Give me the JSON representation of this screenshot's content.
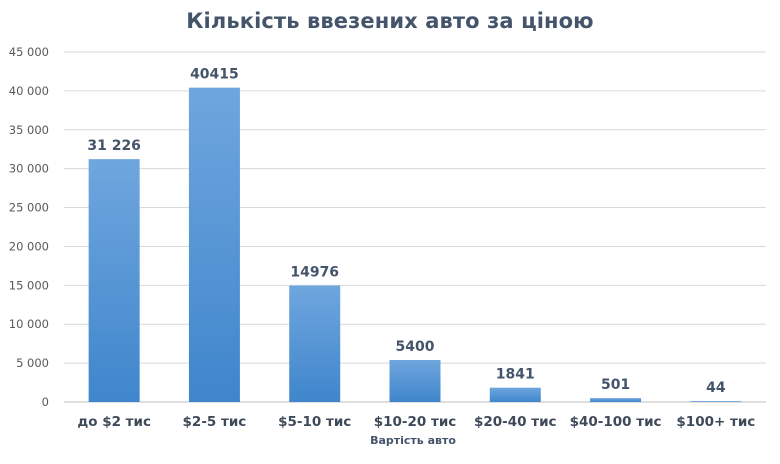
{
  "chart_data": {
    "type": "bar",
    "title": "Кількість ввезених авто за ціною",
    "xlabel": "Вартість авто",
    "ylabel": "",
    "categories": [
      "до $2 тис",
      "$2-5 тис",
      "$5-10 тис",
      "$10-20 тис",
      "$20-40 тис",
      "$40-100 тис",
      "$100+ тис"
    ],
    "values": [
      31226,
      40415,
      14976,
      5400,
      1841,
      501,
      44
    ],
    "data_labels": [
      "31 226",
      "40415",
      "14976",
      "5400",
      "1841",
      "501",
      "44"
    ],
    "y_ticks": [
      0,
      5000,
      10000,
      15000,
      20000,
      25000,
      30000,
      35000,
      40000,
      45000
    ],
    "y_tick_labels": [
      "0",
      "5 000",
      "10 000",
      "15 000",
      "20 000",
      "25 000",
      "30 000",
      "35 000",
      "40 000",
      "45 000"
    ],
    "ylim": [
      0,
      45000
    ],
    "grid": true,
    "legend": "none",
    "colors": {
      "bar_top": "#6fa6de",
      "bar_bottom": "#3f86cc",
      "grid": "#d9d9d9",
      "title": "#44546a"
    }
  }
}
